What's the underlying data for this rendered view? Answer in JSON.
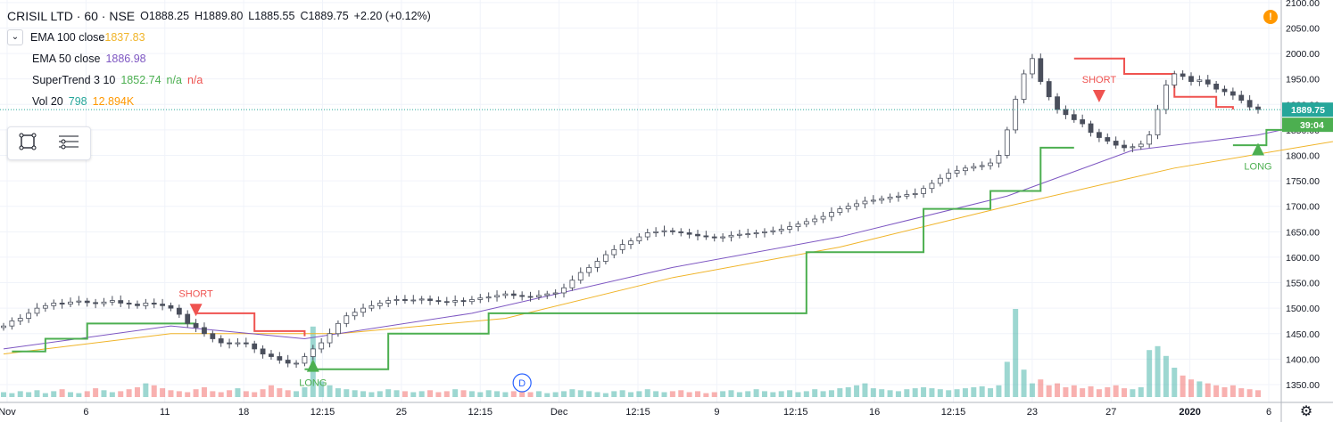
{
  "header": {
    "symbol": "CRISIL LTD · 60 · NSE",
    "open": "O1888.25",
    "high": "H1889.80",
    "low": "L1885.55",
    "close": "C1889.75",
    "change": "+2.20 (+0.12%)"
  },
  "indicators": [
    {
      "name": "EMA 100 close",
      "values": [
        "1837.83"
      ],
      "colors": [
        "#f0b429"
      ]
    },
    {
      "name": "EMA 50 close",
      "values": [
        "1886.98"
      ],
      "colors": [
        "#7e57c2"
      ]
    },
    {
      "name": "SuperTrend 3 10",
      "values": [
        "1852.74",
        "n/a",
        "n/a"
      ],
      "colors": [
        "#4caf50",
        "#4caf50",
        "#ef5350"
      ]
    },
    {
      "name": "Vol 20",
      "values": [
        "798",
        "12.894K"
      ],
      "colors": [
        "#26a69a",
        "#ff9800"
      ]
    }
  ],
  "price_label": "1889.75",
  "countdown_label": "39:04",
  "warning_glyph": "!",
  "gear_glyph": "⚙",
  "colors": {
    "up": "#26a69a",
    "down": "#ef5350",
    "ema100": "#f0b429",
    "ema50": "#7e57c2",
    "st_up": "#4caf50",
    "st_down": "#ef5350"
  },
  "chart_data": {
    "type": "candlestick",
    "x_tick_labels": [
      "Nov",
      "6",
      "11",
      "18",
      "12:15",
      "25",
      "12:15",
      "Dec",
      "12:15",
      "9",
      "12:15",
      "16",
      "12:15",
      "23",
      "27",
      "2020",
      "6"
    ],
    "y_ticks": [
      1350,
      1400,
      1450,
      1500,
      1550,
      1600,
      1650,
      1700,
      1750,
      1800,
      1850,
      1900,
      1950,
      2000,
      2050,
      2100
    ],
    "ylim": [
      1315,
      2105
    ],
    "close_series": [
      1465,
      1475,
      1480,
      1490,
      1500,
      1505,
      1510,
      1508,
      1512,
      1514,
      1511,
      1509,
      1512,
      1515,
      1510,
      1508,
      1505,
      1510,
      1508,
      1505,
      1500,
      1488,
      1470,
      1462,
      1450,
      1440,
      1432,
      1430,
      1432,
      1430,
      1420,
      1410,
      1405,
      1398,
      1392,
      1392,
      1405,
      1420,
      1432,
      1450,
      1470,
      1485,
      1492,
      1500,
      1505,
      1510,
      1515,
      1517,
      1515,
      1516,
      1518,
      1515,
      1513,
      1512,
      1515,
      1513,
      1517,
      1520,
      1522,
      1525,
      1528,
      1525,
      1523,
      1522,
      1525,
      1528,
      1530,
      1540,
      1555,
      1570,
      1580,
      1592,
      1605,
      1615,
      1625,
      1632,
      1640,
      1648,
      1650,
      1652,
      1650,
      1648,
      1645,
      1642,
      1640,
      1638,
      1640,
      1643,
      1645,
      1646,
      1648,
      1650,
      1652,
      1655,
      1660,
      1665,
      1670,
      1675,
      1680,
      1688,
      1695,
      1700,
      1705,
      1710,
      1712,
      1715,
      1718,
      1720,
      1723,
      1725,
      1735,
      1745,
      1755,
      1765,
      1770,
      1775,
      1778,
      1780,
      1785,
      1800,
      1850,
      1910,
      1960,
      1990,
      1945,
      1915,
      1890,
      1880,
      1870,
      1862,
      1845,
      1835,
      1828,
      1820,
      1815,
      1817,
      1822,
      1840,
      1890,
      1938,
      1960,
      1955,
      1945,
      1948,
      1940,
      1930,
      1925,
      1918,
      1908,
      1895,
      1890
    ],
    "volume_series": [
      5,
      4,
      6,
      5,
      7,
      4,
      6,
      8,
      5,
      4,
      6,
      9,
      7,
      5,
      6,
      8,
      10,
      14,
      12,
      9,
      7,
      6,
      5,
      8,
      10,
      6,
      5,
      7,
      9,
      6,
      5,
      8,
      12,
      9,
      7,
      6,
      10,
      72,
      16,
      12,
      9,
      8,
      7,
      6,
      5,
      6,
      8,
      7,
      6,
      5,
      6,
      7,
      5,
      6,
      8,
      7,
      6,
      5,
      7,
      6,
      5,
      6,
      7,
      5,
      6,
      4,
      5,
      6,
      8,
      7,
      6,
      5,
      4,
      6,
      7,
      5,
      6,
      8,
      6,
      5,
      6,
      7,
      5,
      6,
      4,
      5,
      6,
      7,
      5,
      6,
      8,
      6,
      5,
      6,
      7,
      5,
      6,
      8,
      6,
      7,
      9,
      10,
      12,
      14,
      9,
      8,
      7,
      6,
      8,
      9,
      10,
      9,
      8,
      7,
      8,
      9,
      10,
      11,
      9,
      12,
      36,
      90,
      28,
      14,
      18,
      12,
      14,
      10,
      12,
      9,
      11,
      8,
      10,
      12,
      9,
      8,
      10,
      48,
      52,
      42,
      30,
      22,
      18,
      16,
      14,
      12,
      10,
      12,
      9,
      8,
      7
    ],
    "supertrend_up_1": [
      [
        1,
        1415
      ],
      [
        5,
        1440
      ],
      [
        10,
        1470
      ],
      [
        23,
        1470
      ]
    ],
    "supertrend_down_1": [
      [
        23,
        1490
      ],
      [
        30,
        1455
      ],
      [
        36,
        1445
      ]
    ],
    "supertrend_up_2": [
      [
        36,
        1380
      ],
      [
        46,
        1450
      ],
      [
        58,
        1490
      ],
      [
        96,
        1610
      ],
      [
        110,
        1695
      ],
      [
        118,
        1730
      ],
      [
        124,
        1815
      ],
      [
        128,
        1815
      ]
    ],
    "supertrend_down_2": [
      [
        128,
        1990
      ],
      [
        134,
        1960
      ],
      [
        140,
        1915
      ],
      [
        145,
        1895
      ],
      [
        147,
        1890
      ]
    ],
    "supertrend_up_3": [
      [
        147,
        1820
      ],
      [
        151,
        1850
      ],
      [
        171,
        1850
      ]
    ],
    "ema100_series": [
      [
        0,
        1410
      ],
      [
        20,
        1450
      ],
      [
        40,
        1450
      ],
      [
        60,
        1480
      ],
      [
        80,
        1560
      ],
      [
        100,
        1620
      ],
      [
        120,
        1700
      ],
      [
        140,
        1775
      ],
      [
        160,
        1830
      ],
      [
        171,
        1840
      ]
    ],
    "ema50_series": [
      [
        0,
        1420
      ],
      [
        20,
        1465
      ],
      [
        36,
        1440
      ],
      [
        56,
        1490
      ],
      [
        80,
        1580
      ],
      [
        100,
        1640
      ],
      [
        120,
        1720
      ],
      [
        135,
        1810
      ],
      [
        150,
        1840
      ],
      [
        160,
        1875
      ],
      [
        171,
        1887
      ]
    ],
    "signals": [
      {
        "label": "SHORT",
        "bar": 23,
        "price": 1540,
        "dir": "down"
      },
      {
        "label": "LONG",
        "bar": 37,
        "price": 1375,
        "dir": "up"
      },
      {
        "label": "SHORT",
        "bar": 131,
        "price": 1960,
        "dir": "down"
      },
      {
        "label": "LONG",
        "bar": 150,
        "price": 1800,
        "dir": "up"
      }
    ],
    "dividend_marker": {
      "label": "D",
      "bar": 62
    }
  }
}
